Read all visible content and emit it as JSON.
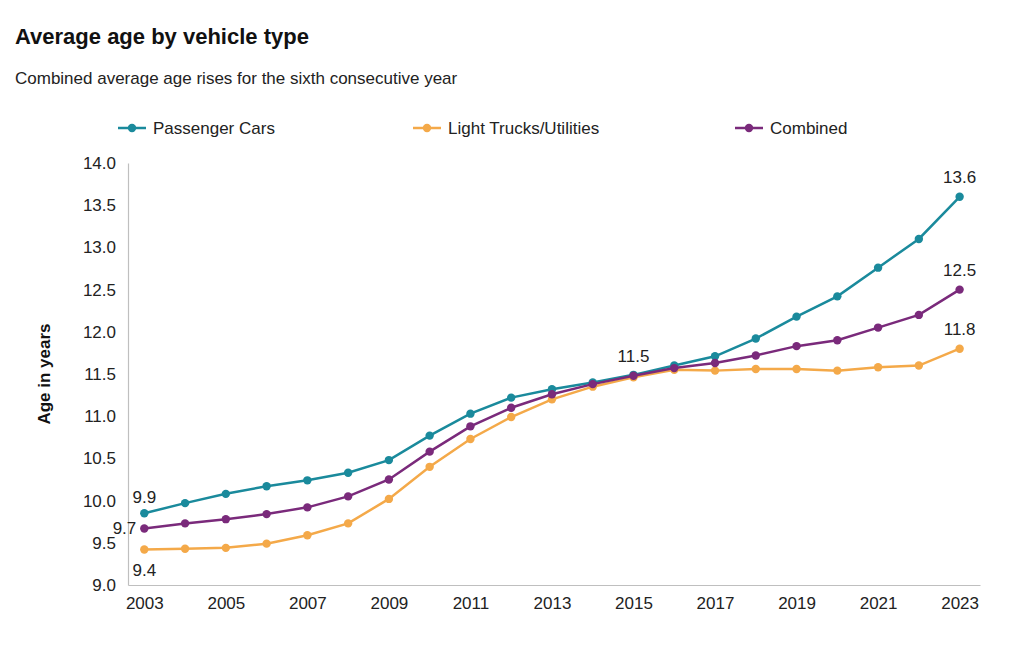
{
  "chart_data": {
    "type": "line",
    "title": "Average age by vehicle type",
    "subtitle": "Combined average age rises for the sixth consecutive year",
    "y_label": "Age in years",
    "x": [
      2003,
      2004,
      2005,
      2006,
      2007,
      2008,
      2009,
      2010,
      2011,
      2012,
      2013,
      2014,
      2015,
      2016,
      2017,
      2018,
      2019,
      2020,
      2021,
      2022,
      2023
    ],
    "series": [
      {
        "name": "Passenger Cars",
        "color": "#1a8a9c",
        "marker": "circle",
        "line_style": "solid",
        "values": [
          9.85,
          9.97,
          10.08,
          10.17,
          10.24,
          10.33,
          10.48,
          10.77,
          11.03,
          11.22,
          11.32,
          11.4,
          11.49,
          11.6,
          11.71,
          11.92,
          12.18,
          12.42,
          12.76,
          13.1,
          13.6
        ],
        "value_labels": [
          "9.9",
          null,
          null,
          null,
          null,
          null,
          null,
          null,
          null,
          null,
          null,
          null,
          null,
          null,
          null,
          null,
          null,
          null,
          null,
          null,
          "13.6"
        ]
      },
      {
        "name": "Light Trucks/Utilities",
        "color": "#f4a949",
        "marker": "circle",
        "line_style": "solid",
        "values": [
          9.42,
          9.43,
          9.44,
          9.49,
          9.59,
          9.73,
          10.02,
          10.4,
          10.73,
          10.99,
          11.2,
          11.35,
          11.46,
          11.55,
          11.54,
          11.56,
          11.56,
          11.54,
          11.58,
          11.6,
          11.8
        ],
        "value_labels": [
          "9.4",
          null,
          null,
          null,
          null,
          null,
          null,
          null,
          null,
          null,
          null,
          null,
          null,
          null,
          null,
          null,
          null,
          null,
          null,
          null,
          "11.8"
        ]
      },
      {
        "name": "Combined",
        "color": "#7a2a7b",
        "marker": "circle",
        "line_style": "solid",
        "values": [
          9.67,
          9.73,
          9.78,
          9.84,
          9.92,
          10.05,
          10.25,
          10.58,
          10.88,
          11.1,
          11.26,
          11.38,
          11.48,
          11.57,
          11.63,
          11.72,
          11.83,
          11.9,
          12.05,
          12.2,
          12.5
        ],
        "value_labels": [
          "9.7",
          null,
          null,
          null,
          null,
          null,
          null,
          null,
          null,
          null,
          null,
          null,
          11.5,
          null,
          null,
          null,
          null,
          null,
          null,
          null,
          "12.5"
        ]
      }
    ],
    "xlim": [
      2002.6,
      2023.5
    ],
    "ylim": [
      9.0,
      14.0
    ],
    "xticks": [
      2003,
      2005,
      2007,
      2009,
      2011,
      2013,
      2015,
      2017,
      2019,
      2021,
      2023
    ],
    "yticks": [
      {
        "value": 9,
        "label": "9.0"
      },
      9.5,
      {
        "value": 10,
        "label": "10.0"
      },
      10.5,
      {
        "value": 11,
        "label": "11.0"
      },
      11.5,
      {
        "value": 12,
        "label": "12.0"
      },
      12.5,
      {
        "value": 13,
        "label": "13.0"
      },
      13.5,
      {
        "value": 14,
        "label": "14.0"
      }
    ],
    "grid": false,
    "legend": "top"
  }
}
